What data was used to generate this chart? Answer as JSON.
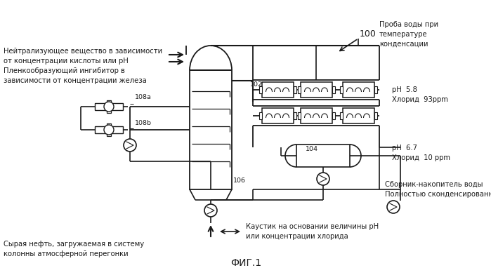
{
  "background_color": "#ffffff",
  "text_color": "#1a1a1a",
  "line_color": "#1a1a1a",
  "labels": {
    "top_label_100": "100",
    "top_right_text": "Проба воды при\nтемпературе\nконденсации",
    "label_102": "102",
    "label_104": "104",
    "label_106": "106",
    "label_108a": "108a",
    "label_108b": "108b",
    "ph_58": "pH  5.8\nХлорид  93ppm",
    "ph_67": "pH  6.7\nХлорид  10 ppm",
    "top_left_text": "Нейтрализующее вещество в зависимости\nот концентрации кислоты или pH\nПленкообразующий ингибитор в\nзависимости от концентрации железа",
    "bottom_left_text": "Сырая нефть, загружаемая в систему\nколонны атмосферной перегонки",
    "bottom_center_text": "Каустик на основании величины pH\nили концентрации хлорида",
    "bottom_right_text": "Сборник-накопитель воды\nПолностью сконденсированная вода",
    "fig_label": "ФИГ.1"
  },
  "figsize": [
    6.99,
    3.92
  ],
  "dpi": 100
}
